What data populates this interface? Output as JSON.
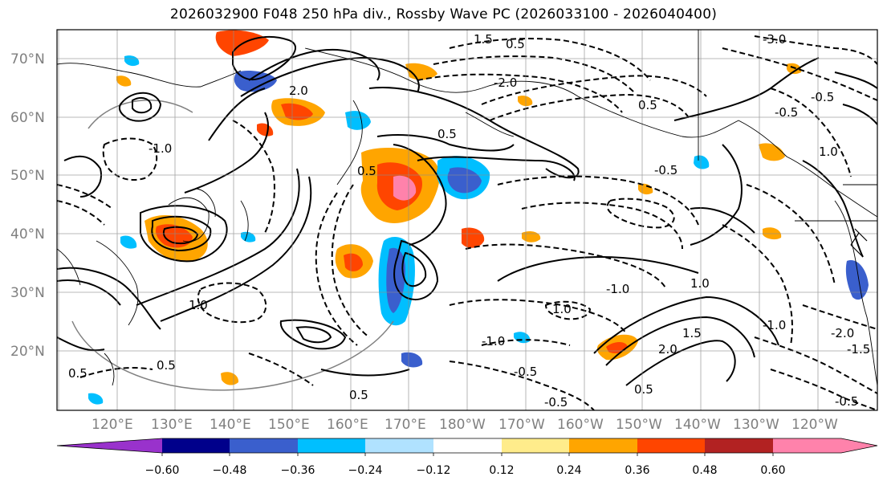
{
  "title": "2026032900 F048 250 hPa div., Rossby Wave PC (2026033100 - 2026040400)",
  "map": {
    "lat_labels": [
      "70°N",
      "60°N",
      "50°N",
      "40°N",
      "30°N",
      "20°N"
    ],
    "lon_labels": [
      "120°E",
      "130°E",
      "140°E",
      "150°E",
      "160°E",
      "170°E",
      "180°W",
      "170°W",
      "160°W",
      "150°W",
      "140°W",
      "130°W",
      "120°W"
    ],
    "contour_labels": [
      "0.5",
      "-0.5",
      "1.0",
      "-1.0",
      "1.5",
      "-1.5",
      "2.0",
      "-2.0",
      "-3.0",
      "0.5",
      "-0.5",
      "1.0",
      "-1.0",
      "0.5",
      "-0.5",
      "1.5",
      "0.5",
      "-0.5"
    ]
  },
  "colorbar": {
    "tick_labels": [
      "−0.60",
      "−0.48",
      "−0.36",
      "−0.24",
      "−0.12",
      "0.12",
      "0.24",
      "0.36",
      "0.48",
      "0.60"
    ],
    "colors": [
      "#9932cc",
      "#00008b",
      "#3a5fcd",
      "#00bfff",
      "#b0e2ff",
      "#ffffff",
      "#ffec8b",
      "#ffa500",
      "#ff4500",
      "#b22222",
      "#ff82ab",
      "#ff82ab"
    ]
  }
}
